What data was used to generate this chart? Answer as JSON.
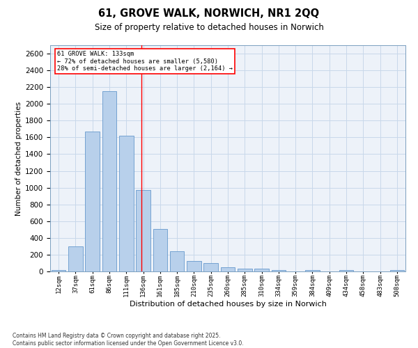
{
  "title": "61, GROVE WALK, NORWICH, NR1 2QQ",
  "subtitle": "Size of property relative to detached houses in Norwich",
  "xlabel": "Distribution of detached houses by size in Norwich",
  "ylabel": "Number of detached properties",
  "categories": [
    "12sqm",
    "37sqm",
    "61sqm",
    "86sqm",
    "111sqm",
    "136sqm",
    "161sqm",
    "185sqm",
    "210sqm",
    "235sqm",
    "260sqm",
    "285sqm",
    "310sqm",
    "334sqm",
    "359sqm",
    "384sqm",
    "409sqm",
    "434sqm",
    "458sqm",
    "483sqm",
    "508sqm"
  ],
  "values": [
    20,
    295,
    1670,
    2150,
    1620,
    975,
    505,
    245,
    125,
    100,
    50,
    30,
    30,
    20,
    0,
    15,
    0,
    15,
    0,
    0,
    20
  ],
  "bar_color": "#b8d0eb",
  "bar_edge_color": "#6699cc",
  "grid_color": "#c8d8ea",
  "background_color": "#edf2f9",
  "annotation_text_line1": "61 GROVE WALK: 133sqm",
  "annotation_text_line2": "← 72% of detached houses are smaller (5,580)",
  "annotation_text_line3": "28% of semi-detached houses are larger (2,164) →",
  "ylim": [
    0,
    2700
  ],
  "yticks": [
    0,
    200,
    400,
    600,
    800,
    1000,
    1200,
    1400,
    1600,
    1800,
    2000,
    2200,
    2400,
    2600
  ],
  "vline_x": 4.88,
  "footnote_line1": "Contains HM Land Registry data © Crown copyright and database right 2025.",
  "footnote_line2": "Contains public sector information licensed under the Open Government Licence v3.0."
}
